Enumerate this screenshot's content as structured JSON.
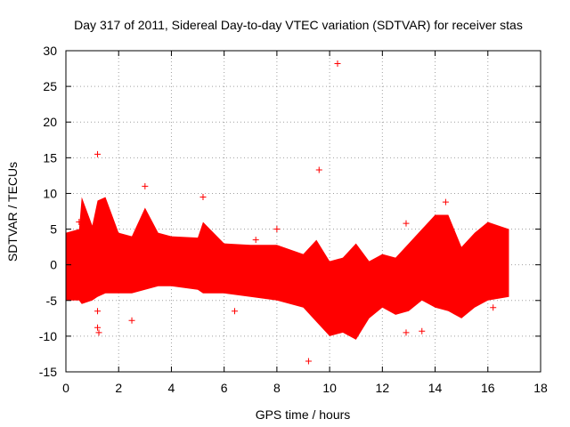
{
  "chart_data": {
    "type": "scatter",
    "title": "Day 317 of 2011, Sidereal Day-to-day VTEC variation (SDTVAR) for receiver stas",
    "xlabel": "GPS time / hours",
    "ylabel": "SDTVAR / TECUs",
    "xlim": [
      0,
      18
    ],
    "ylim": [
      -15,
      30
    ],
    "x_ticks": [
      0,
      2,
      4,
      6,
      8,
      10,
      12,
      14,
      16,
      18
    ],
    "y_ticks": [
      -15,
      -10,
      -5,
      0,
      5,
      10,
      15,
      20,
      25,
      30
    ],
    "grid": true,
    "marker": "+",
    "series_color": "#ff0000",
    "series": [
      {
        "name": "SDTVAR",
        "envelope": [
          {
            "x": 0.0,
            "upper": 4.5,
            "lower": -5.0
          },
          {
            "x": 0.5,
            "upper": 5.0,
            "lower": -5.0
          },
          {
            "x": 0.6,
            "upper": 9.5,
            "lower": -5.5
          },
          {
            "x": 1.0,
            "upper": 5.5,
            "lower": -5.0
          },
          {
            "x": 1.2,
            "upper": 9.0,
            "lower": -4.5
          },
          {
            "x": 1.5,
            "upper": 9.5,
            "lower": -4.0
          },
          {
            "x": 2.0,
            "upper": 4.5,
            "lower": -4.0
          },
          {
            "x": 2.5,
            "upper": 4.0,
            "lower": -4.0
          },
          {
            "x": 3.0,
            "upper": 8.0,
            "lower": -3.5
          },
          {
            "x": 3.5,
            "upper": 4.5,
            "lower": -3.0
          },
          {
            "x": 4.0,
            "upper": 4.0,
            "lower": -3.0
          },
          {
            "x": 5.0,
            "upper": 3.8,
            "lower": -3.5
          },
          {
            "x": 5.2,
            "upper": 6.0,
            "lower": -4.0
          },
          {
            "x": 6.0,
            "upper": 3.0,
            "lower": -4.0
          },
          {
            "x": 7.0,
            "upper": 2.8,
            "lower": -4.5
          },
          {
            "x": 8.0,
            "upper": 2.8,
            "lower": -5.0
          },
          {
            "x": 9.0,
            "upper": 1.5,
            "lower": -6.0
          },
          {
            "x": 9.5,
            "upper": 3.5,
            "lower": -8.0
          },
          {
            "x": 10.0,
            "upper": 0.5,
            "lower": -10.0
          },
          {
            "x": 10.5,
            "upper": 1.0,
            "lower": -9.5
          },
          {
            "x": 11.0,
            "upper": 3.0,
            "lower": -10.5
          },
          {
            "x": 11.5,
            "upper": 0.5,
            "lower": -7.5
          },
          {
            "x": 12.0,
            "upper": 1.5,
            "lower": -6.0
          },
          {
            "x": 12.5,
            "upper": 1.0,
            "lower": -7.0
          },
          {
            "x": 13.0,
            "upper": 3.0,
            "lower": -6.5
          },
          {
            "x": 13.5,
            "upper": 5.0,
            "lower": -5.0
          },
          {
            "x": 14.0,
            "upper": 7.0,
            "lower": -6.0
          },
          {
            "x": 14.5,
            "upper": 7.0,
            "lower": -6.5
          },
          {
            "x": 15.0,
            "upper": 2.5,
            "lower": -7.5
          },
          {
            "x": 15.5,
            "upper": 4.5,
            "lower": -6.0
          },
          {
            "x": 16.0,
            "upper": 6.0,
            "lower": -5.0
          },
          {
            "x": 16.8,
            "upper": 5.0,
            "lower": -4.5
          }
        ],
        "outliers": [
          {
            "x": 10.3,
            "y": 28.2
          },
          {
            "x": 9.6,
            "y": 13.3
          },
          {
            "x": 1.2,
            "y": 15.5
          },
          {
            "x": 5.2,
            "y": 9.5
          },
          {
            "x": 3.0,
            "y": 11.0
          },
          {
            "x": 14.4,
            "y": 8.8
          },
          {
            "x": 12.9,
            "y": 5.8
          },
          {
            "x": 9.2,
            "y": -13.5
          },
          {
            "x": 1.25,
            "y": -9.5
          },
          {
            "x": 1.2,
            "y": -8.8
          },
          {
            "x": 2.5,
            "y": -7.8
          },
          {
            "x": 1.2,
            "y": -6.5
          },
          {
            "x": 6.4,
            "y": -6.5
          },
          {
            "x": 12.9,
            "y": -9.5
          },
          {
            "x": 13.5,
            "y": -9.3
          },
          {
            "x": 16.2,
            "y": -6.0
          },
          {
            "x": 8.0,
            "y": 5.0
          },
          {
            "x": 7.2,
            "y": 3.5
          },
          {
            "x": 0.5,
            "y": 6.0
          }
        ]
      }
    ]
  }
}
